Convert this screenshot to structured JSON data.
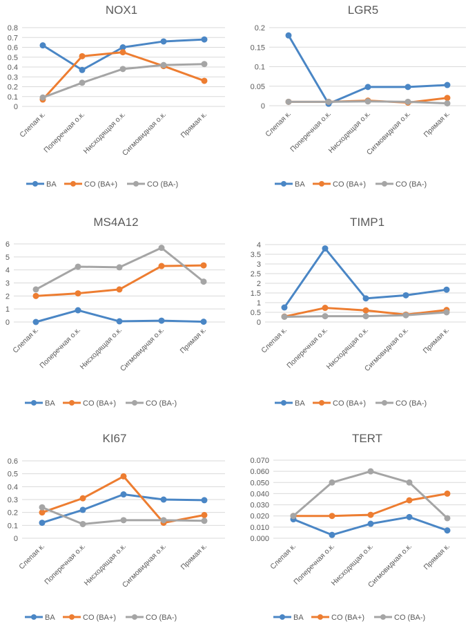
{
  "chart_data": [
    {
      "type": "line",
      "title": "NOX1",
      "categories": [
        "Слепая к.",
        "Поперечная о.к.",
        "Нисходящая о.к.",
        "Сигмовидная о.к.",
        "Прямая к."
      ],
      "yticks": [
        "0",
        "0.1",
        "0.2",
        "0.3",
        "0.4",
        "0.5",
        "0.6",
        "0.7",
        "0.8"
      ],
      "ylim": [
        0,
        0.8
      ],
      "xlabel": "",
      "ylabel": "",
      "grid": true,
      "legend": "bottom",
      "series": [
        {
          "name": "BA",
          "color": "#4a86c5",
          "values": [
            0.62,
            0.37,
            0.6,
            0.66,
            0.68
          ]
        },
        {
          "name": "CO (BA+)",
          "color": "#ed7d31",
          "values": [
            0.07,
            0.51,
            0.55,
            0.41,
            0.26
          ]
        },
        {
          "name": "CO (BA-)",
          "color": "#a5a5a5",
          "values": [
            0.09,
            0.24,
            0.38,
            0.42,
            0.43
          ]
        }
      ]
    },
    {
      "type": "line",
      "title": "LGR5",
      "categories": [
        "Слепая к.",
        "Поперечная о.к.",
        "Нисходящая о.к.",
        "Сигмовидная о.к.",
        "Прямая к."
      ],
      "yticks": [
        "0",
        "0.05",
        "0.1",
        "0.15",
        "0.2"
      ],
      "ylim": [
        0,
        0.2
      ],
      "xlabel": "",
      "ylabel": "",
      "grid": true,
      "legend": "bottom",
      "series": [
        {
          "name": "BA",
          "color": "#4a86c5",
          "values": [
            0.18,
            0.005,
            0.048,
            0.048,
            0.053
          ]
        },
        {
          "name": "CO (BA+)",
          "color": "#ed7d31",
          "values": [
            0.01,
            0.01,
            0.013,
            0.008,
            0.02
          ]
        },
        {
          "name": "CO (BA-)",
          "color": "#a5a5a5",
          "values": [
            0.01,
            0.01,
            0.011,
            0.01,
            0.006
          ]
        }
      ]
    },
    {
      "type": "line",
      "title": "MS4A12",
      "categories": [
        "Слепая к.",
        "Поперечная о.к.",
        "Нисходящая о.к.",
        "Сигмовидная о.к.",
        "Прямая к."
      ],
      "yticks": [
        "0",
        "1",
        "2",
        "3",
        "4",
        "5",
        "6"
      ],
      "ylim": [
        0,
        6
      ],
      "xlabel": "",
      "ylabel": "",
      "grid": true,
      "legend": "bottom",
      "series": [
        {
          "name": "BA",
          "color": "#4a86c5",
          "values": [
            0.0,
            0.9,
            0.05,
            0.1,
            0.02
          ]
        },
        {
          "name": "CO (BA+)",
          "color": "#ed7d31",
          "values": [
            2.0,
            2.2,
            2.5,
            4.3,
            4.35
          ]
        },
        {
          "name": "CO (BA-)",
          "color": "#a5a5a5",
          "values": [
            2.5,
            4.25,
            4.2,
            5.7,
            3.1
          ]
        }
      ]
    },
    {
      "type": "line",
      "title": "TIMP1",
      "categories": [
        "Слепая к.",
        "Поперечная о.к.",
        "Нисходящая о.к.",
        "Сигмовидная о.к.",
        "Прямая к."
      ],
      "yticks": [
        "0",
        "0.5",
        "1",
        "1.5",
        "2",
        "2.5",
        "3",
        "3.5",
        "4"
      ],
      "ylim": [
        0,
        4
      ],
      "xlabel": "",
      "ylabel": "",
      "grid": true,
      "legend": "bottom",
      "series": [
        {
          "name": "BA",
          "color": "#4a86c5",
          "values": [
            0.75,
            3.8,
            1.22,
            1.38,
            1.67
          ]
        },
        {
          "name": "CO (BA+)",
          "color": "#ed7d31",
          "values": [
            0.28,
            0.73,
            0.6,
            0.38,
            0.62
          ]
        },
        {
          "name": "CO (BA-)",
          "color": "#a5a5a5",
          "values": [
            0.27,
            0.3,
            0.3,
            0.35,
            0.5
          ]
        }
      ]
    },
    {
      "type": "line",
      "title": "KI67",
      "categories": [
        "Слепая к.",
        "Поперечная о.к.",
        "Нисходящая о.к.",
        "Сигмовидная о.к.",
        "Прямая к."
      ],
      "yticks": [
        "0",
        "0.1",
        "0.2",
        "0.3",
        "0.4",
        "0.5",
        "0.6"
      ],
      "ylim": [
        0,
        0.6
      ],
      "xlabel": "",
      "ylabel": "",
      "grid": true,
      "legend": "bottom",
      "series": [
        {
          "name": "BA",
          "color": "#4a86c5",
          "values": [
            0.12,
            0.22,
            0.34,
            0.3,
            0.295
          ]
        },
        {
          "name": "CO (BA+)",
          "color": "#ed7d31",
          "values": [
            0.2,
            0.31,
            0.48,
            0.12,
            0.18
          ]
        },
        {
          "name": "CO (BA-)",
          "color": "#a5a5a5",
          "values": [
            0.24,
            0.11,
            0.14,
            0.14,
            0.135
          ]
        }
      ]
    },
    {
      "type": "line",
      "title": "TERT",
      "categories": [
        "Слепая к.",
        "Поперечная о.к.",
        "Нисходящая о.к.",
        "Сигмовидная о.к.",
        "Прямая к."
      ],
      "yticks": [
        "0.000",
        "0.010",
        "0.020",
        "0.030",
        "0.040",
        "0.050",
        "0.060",
        "0.070"
      ],
      "ylim": [
        0,
        0.07
      ],
      "xlabel": "",
      "ylabel": "",
      "grid": true,
      "legend": "bottom",
      "series": [
        {
          "name": "BA",
          "color": "#4a86c5",
          "values": [
            0.017,
            0.003,
            0.013,
            0.019,
            0.007
          ]
        },
        {
          "name": "CO (BA+)",
          "color": "#ed7d31",
          "values": [
            0.02,
            0.02,
            0.021,
            0.034,
            0.04
          ]
        },
        {
          "name": "CO (BA-)",
          "color": "#a5a5a5",
          "values": [
            0.02,
            0.05,
            0.06,
            0.05,
            0.018
          ]
        }
      ]
    }
  ]
}
